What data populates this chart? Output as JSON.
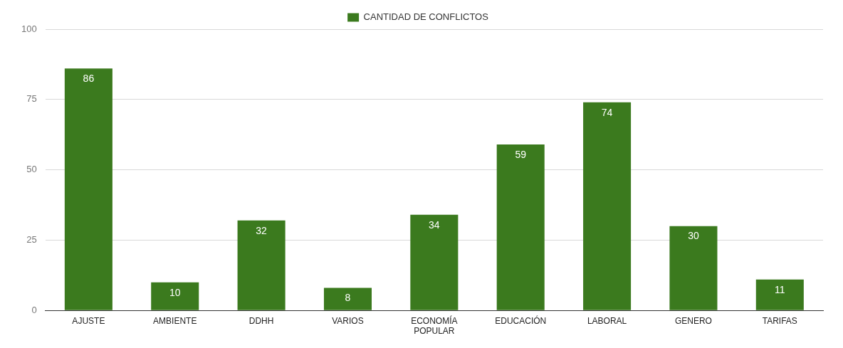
{
  "chart_data": {
    "type": "bar",
    "categories": [
      "AJUSTE",
      "AMBIENTE",
      "DDHH",
      "VARIOS",
      "ECONOMÍA POPULAR",
      "EDUCACIÓN",
      "LABORAL",
      "GENERO",
      "TARIFAS"
    ],
    "series": [
      {
        "name": "CANTIDAD DE CONFLICTOS",
        "color": "#3b7a1e",
        "values": [
          86,
          10,
          32,
          8,
          34,
          59,
          74,
          30,
          11
        ]
      }
    ],
    "ylim": [
      0,
      100
    ],
    "yticks": [
      0,
      25,
      50,
      75,
      100
    ],
    "grid": "y",
    "legend": "top",
    "data_labels": true
  }
}
